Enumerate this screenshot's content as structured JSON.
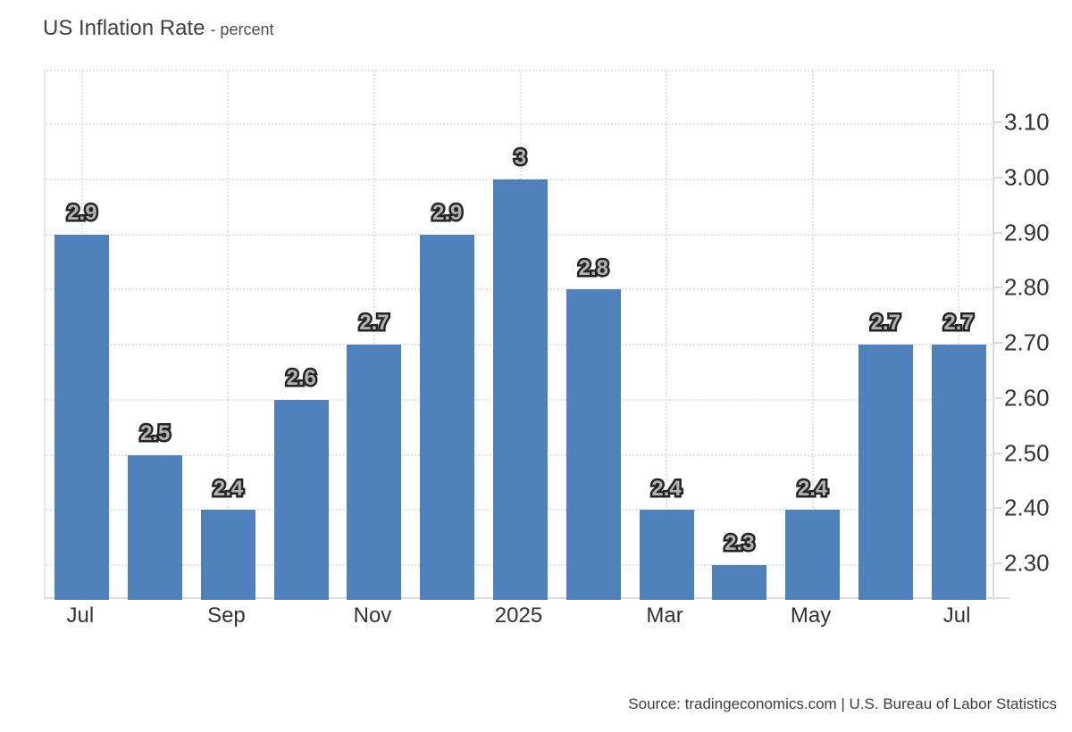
{
  "header": {
    "title": "US Inflation Rate",
    "subtitle": "- percent"
  },
  "footer": {
    "source": "Source: tradingeconomics.com | U.S. Bureau of Labor Statistics"
  },
  "colors": {
    "bar": "#4f81bd",
    "grid": "#e3e3e3",
    "axis_line": "#dcdcdc",
    "tick_text": "#333333",
    "bar_label_fill": "#b3b3b3",
    "bar_label_stroke": "#242424"
  },
  "chart_data": {
    "type": "bar",
    "title": "US Inflation Rate",
    "ylabel": "percent",
    "values": [
      2.9,
      2.5,
      2.4,
      2.6,
      2.7,
      2.9,
      3,
      2.8,
      2.4,
      2.3,
      2.4,
      2.7,
      2.7
    ],
    "bar_labels": [
      "2.9",
      "2.5",
      "2.4",
      "2.6",
      "2.7",
      "2.9",
      "3",
      "2.8",
      "2.4",
      "2.3",
      "2.4",
      "2.7",
      "2.7"
    ],
    "x_ticks": [
      {
        "index": 0,
        "label": "Jul"
      },
      {
        "index": 2,
        "label": "Sep"
      },
      {
        "index": 4,
        "label": "Nov"
      },
      {
        "index": 6,
        "label": "2025"
      },
      {
        "index": 8,
        "label": "Mar"
      },
      {
        "index": 10,
        "label": "May"
      },
      {
        "index": 12,
        "label": "Jul"
      }
    ],
    "y_ticks": [
      {
        "value": 2.3,
        "label": "2.30"
      },
      {
        "value": 2.4,
        "label": "2.40"
      },
      {
        "value": 2.5,
        "label": "2.50"
      },
      {
        "value": 2.6,
        "label": "2.60"
      },
      {
        "value": 2.7,
        "label": "2.70"
      },
      {
        "value": 2.8,
        "label": "2.80"
      },
      {
        "value": 2.9,
        "label": "2.90"
      },
      {
        "value": 3.0,
        "label": "3.00"
      },
      {
        "value": 3.1,
        "label": "3.10"
      }
    ],
    "ylim": [
      2.237,
      3.196
    ],
    "grid": true,
    "legend": false,
    "y_tick_position": "right"
  }
}
